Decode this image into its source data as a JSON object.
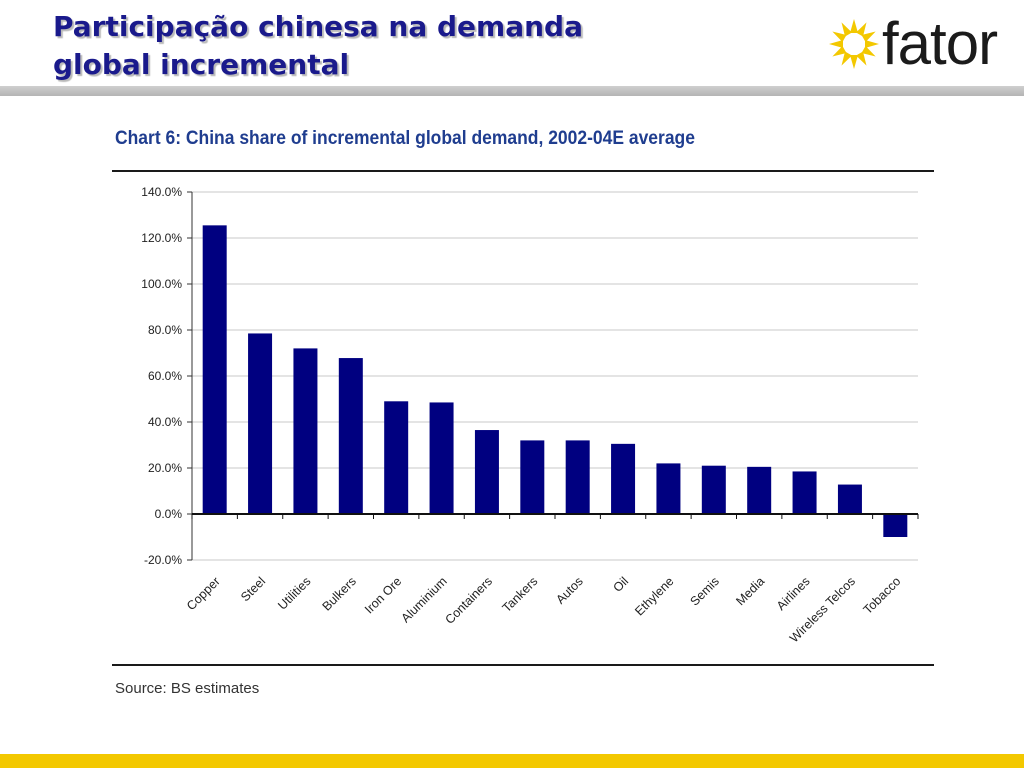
{
  "slide": {
    "title_line1": "Participação chinesa na demanda",
    "title_line2": "global incremental",
    "logo_text": "fator",
    "source": "Source: BS estimates"
  },
  "colors": {
    "bar": "#000080",
    "title": "#1a1a8c",
    "chart_title": "#1f3d8f",
    "footer": "#f3c800",
    "logo_sun": "#f3c800"
  },
  "chart_data": {
    "type": "bar",
    "title": "Chart 6: China share of incremental global demand, 2002-04E average",
    "xlabel": "",
    "ylabel": "",
    "categories": [
      "Copper",
      "Steel",
      "Utilities",
      "Bulkers",
      "Iron Ore",
      "Aluminium",
      "Containers",
      "Tankers",
      "Autos",
      "Oil",
      "Ethylene",
      "Semis",
      "Media",
      "Airlines",
      "Wireless Telcos",
      "Tobacco"
    ],
    "values": [
      125.5,
      78.5,
      72.0,
      67.8,
      49.0,
      48.5,
      36.5,
      32.0,
      32.0,
      30.5,
      22.0,
      21.0,
      20.5,
      18.5,
      12.8,
      -10.0
    ],
    "ylim": [
      -20,
      140
    ],
    "yticks": [
      -20,
      0,
      20,
      40,
      60,
      80,
      100,
      120,
      140
    ],
    "ytick_labels": [
      "-20.0%",
      "0.0%",
      "20.0%",
      "40.0%",
      "60.0%",
      "80.0%",
      "100.0%",
      "120.0%",
      "140.0%"
    ],
    "grid": true,
    "legend": "none"
  }
}
